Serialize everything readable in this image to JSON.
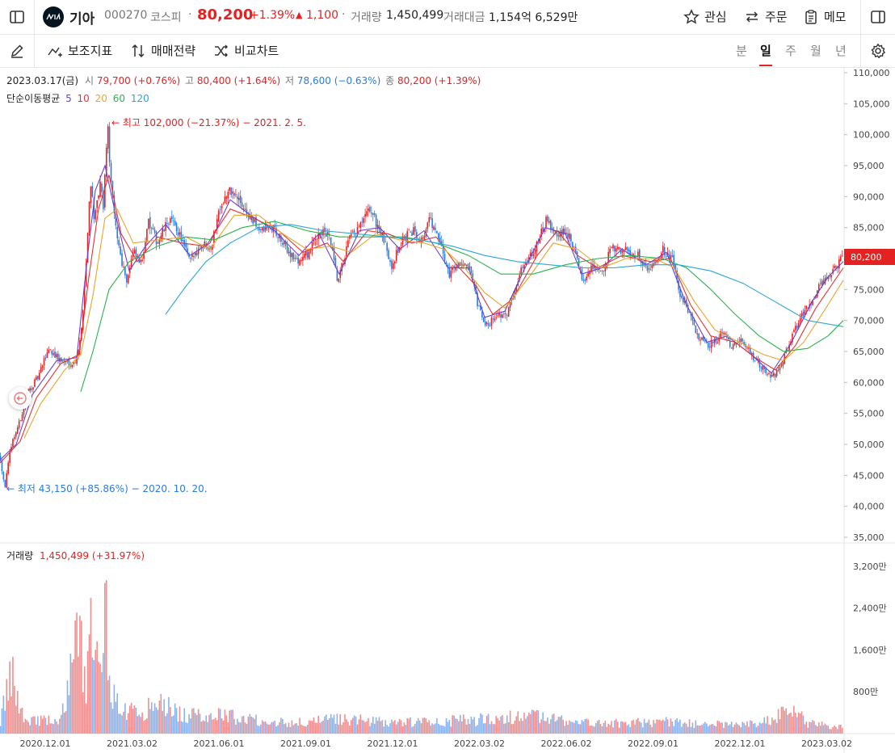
{
  "header": {
    "logo_icon": "kia-logo-icon",
    "name": "기아",
    "code": "000270",
    "market": "코스피",
    "price": "80,200",
    "change_pct": "+1.39%",
    "change_abs": "1,100",
    "volume_label": "거래량",
    "volume": "1,450,499",
    "amount_label": "거래대금",
    "amount": "1,154억 6,529만",
    "watch_label": "관심",
    "order_label": "주문",
    "memo_label": "메모"
  },
  "toolbar": {
    "indicator_label": "보조지표",
    "strategy_label": "매매전략",
    "compare_label": "비교차트",
    "periods": [
      "분",
      "일",
      "주",
      "월",
      "년"
    ],
    "active_period": "일"
  },
  "ohlc": {
    "date": "2023.03.17(금)",
    "open_label": "시",
    "open": "79,700 (+0.76%)",
    "high_label": "고",
    "high": "80,400 (+1.64%)",
    "low_label": "저",
    "low": "78,600 (−0.63%)",
    "close_label": "종",
    "close": "80,200 (+1.39%)"
  },
  "ma_legend": {
    "label": "단순이동평균",
    "periods": [
      "5",
      "10",
      "20",
      "60",
      "120"
    ],
    "colors": [
      "#6a3fd8",
      "#e03434",
      "#e8a52b",
      "#2cb24e",
      "#2aa6d6"
    ]
  },
  "annotations": {
    "max": "최고 102,000 (−21.37%) − 2021. 2. 5.",
    "min": "최저 43,150 (+85.86%) − 2020. 10. 20."
  },
  "price_tag": "80,200",
  "volume_legend": {
    "label": "거래량",
    "value": "1,450,499 (+31.97%)"
  },
  "chart_data": {
    "type": "candlestick",
    "x_ticks": [
      "2020.12.01",
      "2021.03.02",
      "2021.06.01",
      "2021.09.01",
      "2021.12.01",
      "2022.03.02",
      "2022.06.02",
      "2022.09.01",
      "2022.12.01",
      "2023.03.02"
    ],
    "price_ticks": [
      "110,000",
      "105,000",
      "100,000",
      "95,000",
      "90,000",
      "85,000",
      "80,000",
      "75,000",
      "70,000",
      "65,000",
      "60,000",
      "55,000",
      "50,000",
      "45,000",
      "40,000",
      "35,000"
    ],
    "price_range": [
      35000,
      110000
    ],
    "volume_ticks": [
      "3,200만",
      "2,400만",
      "1,600만",
      "800만"
    ],
    "volume_range": [
      0,
      34000000
    ],
    "up_color": "#e42222",
    "down_color": "#2a7be0",
    "close_path": [
      [
        0,
        48000
      ],
      [
        6,
        43150
      ],
      [
        14,
        50000
      ],
      [
        24,
        53500
      ],
      [
        35,
        58500
      ],
      [
        48,
        61000
      ],
      [
        60,
        65500
      ],
      [
        75,
        63500
      ],
      [
        92,
        63000
      ],
      [
        100,
        67000
      ],
      [
        107,
        80000
      ],
      [
        112,
        93000
      ],
      [
        117,
        86000
      ],
      [
        124,
        92000
      ],
      [
        128,
        88000
      ],
      [
        133,
        102000
      ],
      [
        137,
        93000
      ],
      [
        142,
        86000
      ],
      [
        150,
        80000
      ],
      [
        157,
        76500
      ],
      [
        165,
        81000
      ],
      [
        175,
        79000
      ],
      [
        183,
        86000
      ],
      [
        195,
        82500
      ],
      [
        210,
        86500
      ],
      [
        222,
        84000
      ],
      [
        235,
        79500
      ],
      [
        250,
        82500
      ],
      [
        262,
        82000
      ],
      [
        272,
        88500
      ],
      [
        285,
        91000
      ],
      [
        298,
        89000
      ],
      [
        312,
        86000
      ],
      [
        324,
        84500
      ],
      [
        338,
        85000
      ],
      [
        352,
        82000
      ],
      [
        368,
        79500
      ],
      [
        383,
        81000
      ],
      [
        395,
        84500
      ],
      [
        408,
        83500
      ],
      [
        418,
        76000
      ],
      [
        432,
        83000
      ],
      [
        445,
        85000
      ],
      [
        458,
        88000
      ],
      [
        472,
        84000
      ],
      [
        485,
        79000
      ],
      [
        498,
        83000
      ],
      [
        512,
        84500
      ],
      [
        522,
        83000
      ],
      [
        532,
        86500
      ],
      [
        546,
        82000
      ],
      [
        556,
        77500
      ],
      [
        568,
        79500
      ],
      [
        582,
        78000
      ],
      [
        592,
        72000
      ],
      [
        602,
        69000
      ],
      [
        614,
        71000
      ],
      [
        626,
        70500
      ],
      [
        640,
        76500
      ],
      [
        652,
        80000
      ],
      [
        664,
        82000
      ],
      [
        676,
        86000
      ],
      [
        690,
        83500
      ],
      [
        702,
        84500
      ],
      [
        714,
        80000
      ],
      [
        722,
        76500
      ],
      [
        734,
        79000
      ],
      [
        746,
        77500
      ],
      [
        756,
        81500
      ],
      [
        768,
        81500
      ],
      [
        780,
        81000
      ],
      [
        792,
        80500
      ],
      [
        800,
        78000
      ],
      [
        810,
        79500
      ],
      [
        820,
        81500
      ],
      [
        832,
        80000
      ],
      [
        842,
        74000
      ],
      [
        852,
        71500
      ],
      [
        862,
        68000
      ],
      [
        874,
        66000
      ],
      [
        886,
        66500
      ],
      [
        896,
        68500
      ],
      [
        906,
        65500
      ],
      [
        918,
        67000
      ],
      [
        930,
        64500
      ],
      [
        942,
        62500
      ],
      [
        954,
        61000
      ],
      [
        962,
        61500
      ],
      [
        972,
        64500
      ],
      [
        982,
        68000
      ],
      [
        994,
        71000
      ],
      [
        1006,
        73500
      ],
      [
        1016,
        76000
      ],
      [
        1028,
        77500
      ],
      [
        1044,
        80200
      ]
    ],
    "ma_series": [
      {
        "name": "5",
        "color": "#6a3fd8",
        "points": [
          [
            0,
            47500
          ],
          [
            20,
            50000
          ],
          [
            40,
            58000
          ],
          [
            70,
            63500
          ],
          [
            95,
            64000
          ],
          [
            108,
            80000
          ],
          [
            118,
            91000
          ],
          [
            130,
            95000
          ],
          [
            145,
            86000
          ],
          [
            160,
            78000
          ],
          [
            180,
            82000
          ],
          [
            205,
            85500
          ],
          [
            235,
            80500
          ],
          [
            260,
            82500
          ],
          [
            285,
            89500
          ],
          [
            310,
            87000
          ],
          [
            340,
            84500
          ],
          [
            370,
            80500
          ],
          [
            395,
            84000
          ],
          [
            420,
            77500
          ],
          [
            445,
            84500
          ],
          [
            470,
            85000
          ],
          [
            495,
            81500
          ],
          [
            525,
            84500
          ],
          [
            555,
            78500
          ],
          [
            580,
            78500
          ],
          [
            600,
            70500
          ],
          [
            625,
            71500
          ],
          [
            650,
            78500
          ],
          [
            675,
            85000
          ],
          [
            700,
            84000
          ],
          [
            720,
            77500
          ],
          [
            745,
            78500
          ],
          [
            770,
            81500
          ],
          [
            800,
            79000
          ],
          [
            825,
            81000
          ],
          [
            850,
            72500
          ],
          [
            875,
            66500
          ],
          [
            900,
            67500
          ],
          [
            930,
            64500
          ],
          [
            955,
            61500
          ],
          [
            980,
            66500
          ],
          [
            1005,
            73000
          ],
          [
            1025,
            77000
          ],
          [
            1044,
            79500
          ]
        ]
      },
      {
        "name": "10",
        "color": "#e03434",
        "points": [
          [
            0,
            47000
          ],
          [
            25,
            50500
          ],
          [
            45,
            57500
          ],
          [
            75,
            63000
          ],
          [
            98,
            64500
          ],
          [
            110,
            77000
          ],
          [
            122,
            88000
          ],
          [
            135,
            93500
          ],
          [
            150,
            84000
          ],
          [
            170,
            79500
          ],
          [
            195,
            83500
          ],
          [
            225,
            82500
          ],
          [
            255,
            82000
          ],
          [
            285,
            88000
          ],
          [
            315,
            86500
          ],
          [
            345,
            84500
          ],
          [
            375,
            81000
          ],
          [
            405,
            82500
          ],
          [
            425,
            79500
          ],
          [
            455,
            84500
          ],
          [
            480,
            84000
          ],
          [
            510,
            82500
          ],
          [
            540,
            83500
          ],
          [
            565,
            79000
          ],
          [
            590,
            75500
          ],
          [
            610,
            71000
          ],
          [
            635,
            73500
          ],
          [
            665,
            80500
          ],
          [
            690,
            84500
          ],
          [
            715,
            80500
          ],
          [
            740,
            78500
          ],
          [
            770,
            80500
          ],
          [
            805,
            79500
          ],
          [
            830,
            80000
          ],
          [
            855,
            72500
          ],
          [
            880,
            67500
          ],
          [
            910,
            66500
          ],
          [
            935,
            64000
          ],
          [
            960,
            62000
          ],
          [
            985,
            66000
          ],
          [
            1010,
            72000
          ],
          [
            1044,
            78500
          ]
        ]
      },
      {
        "name": "20",
        "color": "#e8a52b",
        "points": [
          [
            30,
            51000
          ],
          [
            50,
            56500
          ],
          [
            80,
            62000
          ],
          [
            100,
            64500
          ],
          [
            115,
            74000
          ],
          [
            130,
            86500
          ],
          [
            145,
            88000
          ],
          [
            165,
            82500
          ],
          [
            195,
            83000
          ],
          [
            230,
            83500
          ],
          [
            260,
            81500
          ],
          [
            290,
            87000
          ],
          [
            320,
            87000
          ],
          [
            350,
            84000
          ],
          [
            380,
            81500
          ],
          [
            410,
            82000
          ],
          [
            435,
            81000
          ],
          [
            465,
            84000
          ],
          [
            495,
            83000
          ],
          [
            525,
            82500
          ],
          [
            550,
            81500
          ],
          [
            575,
            78500
          ],
          [
            600,
            74500
          ],
          [
            625,
            72000
          ],
          [
            655,
            77000
          ],
          [
            685,
            82500
          ],
          [
            715,
            81500
          ],
          [
            745,
            78500
          ],
          [
            775,
            80000
          ],
          [
            810,
            80000
          ],
          [
            835,
            78500
          ],
          [
            860,
            73000
          ],
          [
            885,
            68500
          ],
          [
            915,
            66500
          ],
          [
            945,
            64500
          ],
          [
            970,
            63500
          ],
          [
            995,
            66500
          ],
          [
            1020,
            71500
          ],
          [
            1044,
            76500
          ]
        ]
      },
      {
        "name": "60",
        "color": "#2cb24e",
        "points": [
          [
            100,
            58500
          ],
          [
            115,
            65000
          ],
          [
            135,
            75000
          ],
          [
            160,
            79500
          ],
          [
            195,
            82000
          ],
          [
            230,
            83500
          ],
          [
            265,
            83000
          ],
          [
            300,
            85000
          ],
          [
            340,
            86000
          ],
          [
            380,
            84500
          ],
          [
            420,
            83500
          ],
          [
            460,
            83500
          ],
          [
            500,
            83500
          ],
          [
            540,
            82500
          ],
          [
            580,
            80500
          ],
          [
            620,
            77500
          ],
          [
            660,
            77500
          ],
          [
            700,
            79000
          ],
          [
            740,
            80000
          ],
          [
            780,
            80500
          ],
          [
            820,
            80000
          ],
          [
            850,
            78500
          ],
          [
            880,
            75000
          ],
          [
            910,
            71000
          ],
          [
            940,
            67500
          ],
          [
            970,
            65000
          ],
          [
            1000,
            65500
          ],
          [
            1025,
            67500
          ],
          [
            1044,
            70000
          ]
        ]
      },
      {
        "name": "120",
        "color": "#2aa6d6",
        "points": [
          [
            205,
            71000
          ],
          [
            230,
            75500
          ],
          [
            255,
            79500
          ],
          [
            285,
            82500
          ],
          [
            320,
            85000
          ],
          [
            360,
            85500
          ],
          [
            400,
            84500
          ],
          [
            440,
            84000
          ],
          [
            480,
            83500
          ],
          [
            520,
            83000
          ],
          [
            560,
            82000
          ],
          [
            600,
            80500
          ],
          [
            640,
            79500
          ],
          [
            680,
            79000
          ],
          [
            720,
            78500
          ],
          [
            760,
            78500
          ],
          [
            800,
            79000
          ],
          [
            840,
            79000
          ],
          [
            880,
            78000
          ],
          [
            920,
            76000
          ],
          [
            960,
            73000
          ],
          [
            1000,
            70000
          ],
          [
            1044,
            69000
          ]
        ]
      }
    ],
    "volume_path": [
      [
        0,
        2800000
      ],
      [
        14,
        13500000
      ],
      [
        30,
        3400000
      ],
      [
        60,
        3000000
      ],
      [
        75,
        2500000
      ],
      [
        100,
        26000000
      ],
      [
        104,
        13000000
      ],
      [
        107,
        9000000
      ],
      [
        112,
        26500000
      ],
      [
        116,
        13500000
      ],
      [
        121,
        18500000
      ],
      [
        126,
        11000000
      ],
      [
        128,
        13500000
      ],
      [
        130,
        32000000
      ],
      [
        133,
        22500000
      ],
      [
        136,
        14000000
      ],
      [
        140,
        9000000
      ],
      [
        148,
        6000000
      ],
      [
        170,
        4800000
      ],
      [
        200,
        7000000
      ],
      [
        230,
        4000000
      ],
      [
        270,
        4600000
      ],
      [
        300,
        3500000
      ],
      [
        340,
        2800000
      ],
      [
        380,
        2500000
      ],
      [
        420,
        3500000
      ],
      [
        460,
        2800000
      ],
      [
        500,
        2600000
      ],
      [
        540,
        2800000
      ],
      [
        580,
        3100000
      ],
      [
        620,
        3600000
      ],
      [
        660,
        4300000
      ],
      [
        700,
        2800000
      ],
      [
        740,
        2300000
      ],
      [
        780,
        2400000
      ],
      [
        820,
        2800000
      ],
      [
        860,
        2300000
      ],
      [
        900,
        2000000
      ],
      [
        940,
        2200000
      ],
      [
        982,
        5500000
      ],
      [
        1000,
        2300000
      ],
      [
        1044,
        1450499
      ]
    ]
  }
}
